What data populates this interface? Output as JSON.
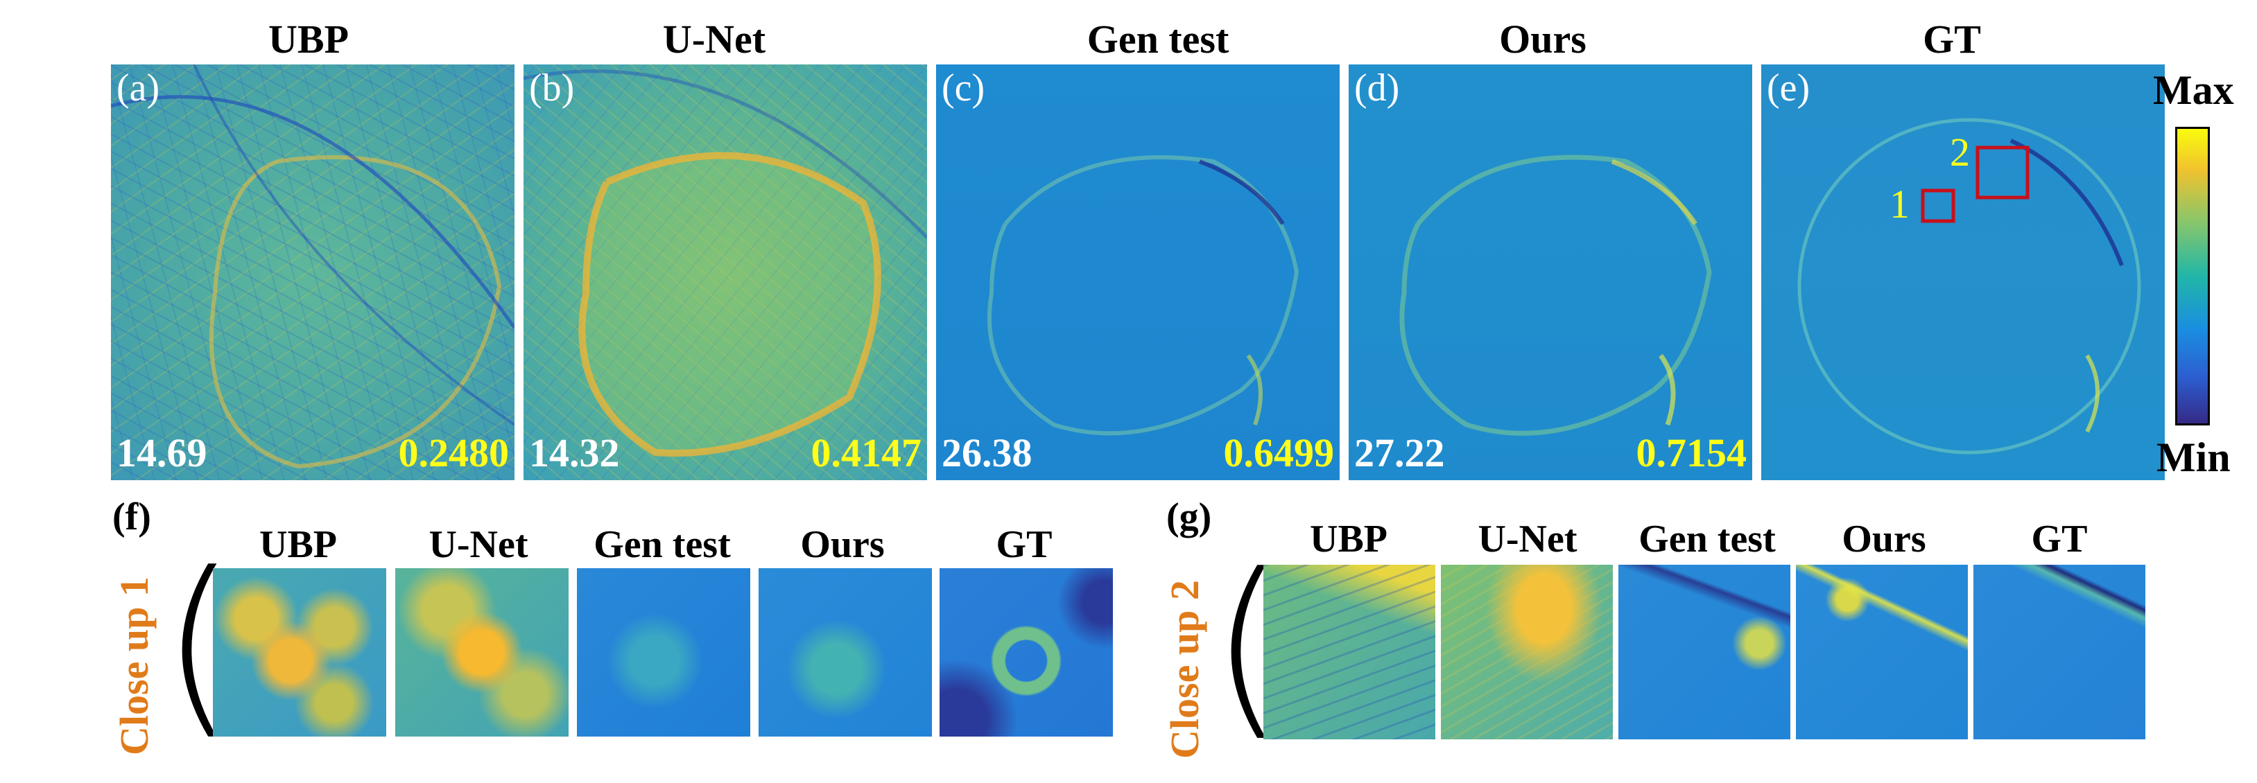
{
  "panels": [
    {
      "title": "UBP",
      "label": "(a)",
      "psnr": "14.69",
      "ssim": "0.2480"
    },
    {
      "title": "U-Net",
      "label": "(b)",
      "psnr": "14.32",
      "ssim": "0.4147"
    },
    {
      "title": "Gen test",
      "label": "(c)",
      "psnr": "26.38",
      "ssim": "0.6499"
    },
    {
      "title": "Ours",
      "label": "(d)",
      "psnr": "27.22",
      "ssim": "0.7154"
    },
    {
      "title": "GT",
      "label": "(e)"
    }
  ],
  "roi_labels": [
    "1",
    "2"
  ],
  "colorbar": {
    "max": "Max",
    "min": "Min",
    "colors": [
      "#f9fb0e",
      "#21b6a7",
      "#352a87"
    ]
  },
  "closeup1": {
    "panel_label": "(f)",
    "side_label": "Close up 1",
    "titles": [
      "UBP",
      "U-Net",
      "Gen test",
      "Ours",
      "GT"
    ]
  },
  "closeup2": {
    "panel_label": "(g)",
    "side_label": "Close up 2",
    "titles": [
      "UBP",
      "U-Net",
      "Gen test",
      "Ours",
      "GT"
    ]
  },
  "colors": {
    "metric_psnr": "#ffffff",
    "metric_ssim": "#ffff1a",
    "roi_box": "#c8101a",
    "roi_label": "#ffff1a",
    "side_label": "#e07b1a"
  }
}
